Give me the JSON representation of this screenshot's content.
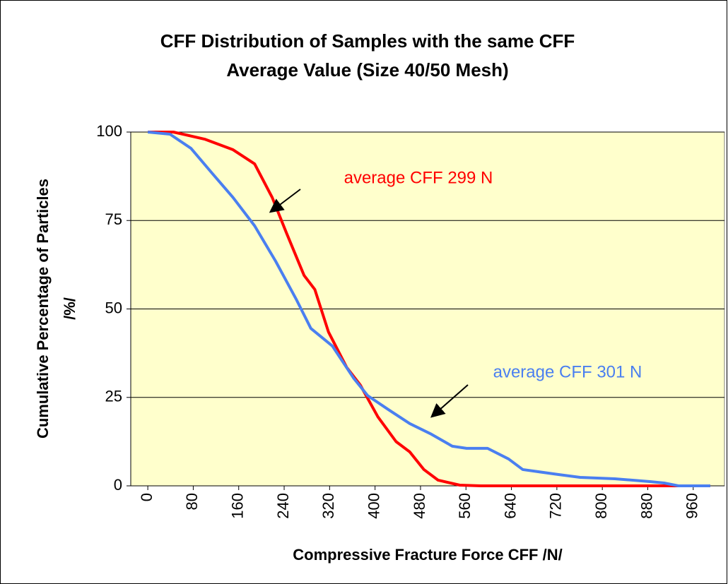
{
  "chart_data": {
    "type": "line",
    "title": [
      "CFF Distribution of Samples with the same CFF",
      "Average Value (Size 40/50 Mesh)"
    ],
    "x_label": "Compressive Fracture Force CFF /N/",
    "y_label": [
      "Cumulative Percentage of Particles",
      "/%/"
    ],
    "xlim": [
      -30,
      1015
    ],
    "ylim": [
      0,
      100
    ],
    "xticks": [
      0,
      80,
      160,
      240,
      320,
      400,
      480,
      560,
      640,
      720,
      800,
      880,
      960
    ],
    "yticks": [
      0,
      25,
      50,
      75,
      100
    ],
    "grid": true,
    "background": "#ffffcc",
    "series": [
      {
        "name": "average CFF 299 N",
        "color": "#ff0000",
        "x": [
          0,
          45,
          100,
          150,
          188,
          219,
          244,
          275,
          294,
          318,
          350,
          374,
          405,
          437,
          461,
          486,
          511,
          549,
          586,
          990
        ],
        "values": [
          100,
          100,
          98,
          95,
          91,
          81.5,
          71.5,
          59.5,
          55.5,
          43.5,
          33.5,
          28.5,
          19.5,
          12.5,
          9.6,
          4.6,
          1.6,
          0.2,
          0,
          0
        ]
      },
      {
        "name": "average CFF 301 N",
        "color": "#4a7ff0",
        "x": [
          0,
          39,
          76,
          113,
          150,
          188,
          225,
          262,
          287,
          325,
          362,
          387,
          424,
          461,
          499,
          536,
          561,
          598,
          635,
          660,
          723,
          761,
          822,
          884,
          909,
          934,
          990
        ],
        "values": [
          100,
          99.4,
          95.4,
          88.4,
          81.5,
          73.5,
          63.5,
          52.5,
          44.5,
          39.5,
          30.5,
          25.5,
          21.5,
          17.6,
          14.6,
          11.2,
          10.6,
          10.6,
          7.6,
          4.6,
          3.2,
          2.4,
          2,
          1.2,
          0.8,
          0,
          0
        ]
      }
    ]
  }
}
